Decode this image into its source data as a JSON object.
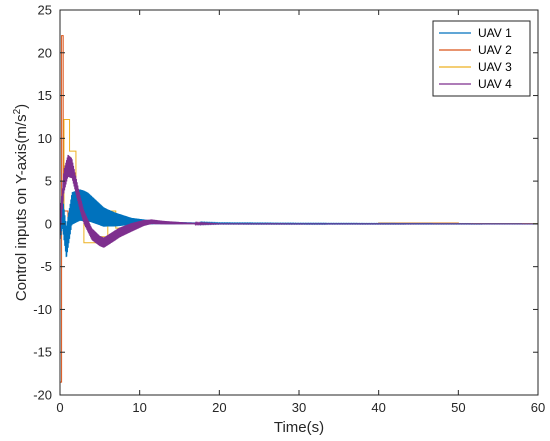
{
  "chart_data": {
    "type": "line",
    "xlabel": "Time(s)",
    "ylabel_main": "Control inputs on Y-axis(m/s",
    "ylabel_sup": "2",
    "ylabel_end": ")",
    "xlim": [
      0,
      60
    ],
    "ylim": [
      -20,
      25
    ],
    "xticks": [
      0,
      10,
      20,
      30,
      40,
      50,
      60
    ],
    "yticks": [
      -20,
      -15,
      -10,
      -5,
      0,
      5,
      10,
      15,
      20,
      25
    ],
    "grid": false,
    "legend_position": "top-right",
    "series": [
      {
        "name": "UAV 1",
        "color": "#0072BD",
        "style": "oscillating",
        "points": [
          [
            0,
            0
          ],
          [
            0.3,
            1.5
          ],
          [
            0.8,
            -2.2
          ],
          [
            1.5,
            1.8
          ],
          [
            2.5,
            2.2
          ],
          [
            3.5,
            2.0
          ],
          [
            4.5,
            1.4
          ],
          [
            5.5,
            0.8
          ],
          [
            7,
            0.5
          ],
          [
            9,
            0.3
          ],
          [
            11,
            0.2
          ],
          [
            14,
            0.1
          ],
          [
            20,
            0.05
          ],
          [
            30,
            0.02
          ],
          [
            40,
            0.01
          ],
          [
            50,
            0.0
          ],
          [
            60,
            0.0
          ]
        ],
        "amplitude": [
          [
            0,
            2.0
          ],
          [
            3,
            1.8
          ],
          [
            6,
            1.0
          ],
          [
            9,
            0.4
          ],
          [
            12,
            0.2
          ],
          [
            16,
            0.1
          ],
          [
            20,
            0.05
          ],
          [
            60,
            0.02
          ]
        ]
      },
      {
        "name": "UAV 2",
        "color": "#D95319",
        "style": "step",
        "points": [
          [
            0,
            -18.5
          ],
          [
            0.2,
            22
          ],
          [
            0.4,
            1.5
          ],
          [
            1.0,
            0.8
          ],
          [
            2.0,
            0.5
          ],
          [
            3.0,
            0.3
          ],
          [
            5.0,
            0.2
          ],
          [
            8.0,
            0.1
          ],
          [
            12,
            0.05
          ],
          [
            20,
            0.02
          ],
          [
            30,
            0.05
          ],
          [
            40,
            0.1
          ],
          [
            50,
            0.05
          ],
          [
            60,
            -0.1
          ]
        ]
      },
      {
        "name": "UAV 3",
        "color": "#EDB120",
        "style": "step",
        "points": [
          [
            0,
            0
          ],
          [
            0.5,
            12.2
          ],
          [
            1.2,
            8.5
          ],
          [
            2.0,
            1.5
          ],
          [
            3.0,
            -2.2
          ],
          [
            4.5,
            -1.5
          ],
          [
            6.0,
            1.5
          ],
          [
            7.0,
            -0.5
          ],
          [
            8.5,
            0.3
          ],
          [
            10,
            0.1
          ],
          [
            14,
            0.05
          ],
          [
            20,
            0.0
          ],
          [
            30,
            0.05
          ],
          [
            40,
            0.08
          ],
          [
            50,
            0.03
          ],
          [
            60,
            0.0
          ]
        ]
      },
      {
        "name": "UAV 4",
        "color": "#7E2F8E",
        "style": "oscillating",
        "points": [
          [
            0,
            0
          ],
          [
            0.5,
            5.0
          ],
          [
            1.0,
            6.8
          ],
          [
            1.5,
            6.5
          ],
          [
            2.0,
            4.5
          ],
          [
            2.5,
            2.5
          ],
          [
            3.0,
            0.8
          ],
          [
            4.0,
            -1.2
          ],
          [
            5.0,
            -2.0
          ],
          [
            5.5,
            -2.2
          ],
          [
            6.5,
            -1.6
          ],
          [
            7.5,
            -1.0
          ],
          [
            9,
            -0.4
          ],
          [
            10.5,
            0.1
          ],
          [
            11.5,
            0.25
          ],
          [
            13,
            0.15
          ],
          [
            16,
            0.05
          ],
          [
            20,
            0.0
          ],
          [
            60,
            0.0
          ]
        ],
        "amplitude": [
          [
            0,
            1.5
          ],
          [
            1,
            1.3
          ],
          [
            3,
            0.8
          ],
          [
            5,
            0.6
          ],
          [
            7,
            0.6
          ],
          [
            9,
            0.5
          ],
          [
            11,
            0.3
          ],
          [
            13,
            0.2
          ],
          [
            16,
            0.1
          ],
          [
            20,
            0.02
          ],
          [
            60,
            0.0
          ]
        ]
      }
    ]
  }
}
